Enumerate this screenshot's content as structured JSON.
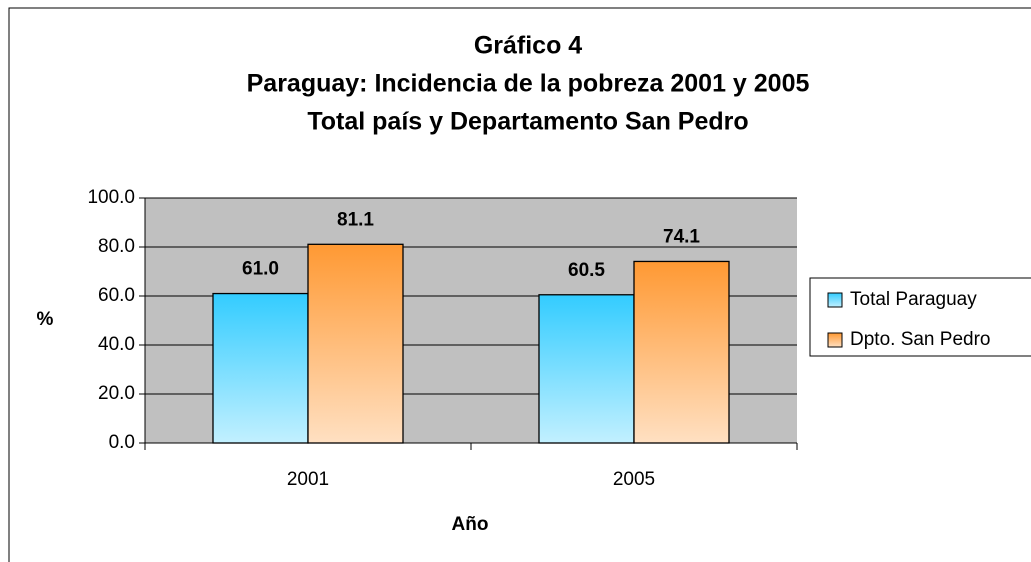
{
  "chart_data": {
    "type": "bar",
    "title": [
      "Gráfico 4",
      "Paraguay: Incidencia de la pobreza 2001 y 2005",
      "Total país y Departamento San Pedro"
    ],
    "x_label": "Año",
    "y_label": "%",
    "categories": [
      "2001",
      "2005"
    ],
    "series": [
      {
        "name": "Total Paraguay",
        "color": "#33ccff",
        "values": [
          61.0,
          60.5
        ],
        "value_labels": [
          "61.0",
          "60.5"
        ]
      },
      {
        "name": "Dpto. San Pedro",
        "color": "#ff9933",
        "values": [
          81.1,
          74.1
        ],
        "value_labels": [
          "81.1",
          "74.1"
        ]
      }
    ],
    "ylim": [
      0,
      100
    ],
    "yticks": [
      {
        "value": 0,
        "label": "0.0"
      },
      {
        "value": 20,
        "label": "20.0"
      },
      {
        "value": 40,
        "label": "40.0"
      },
      {
        "value": 60,
        "label": "60.0"
      },
      {
        "value": 80,
        "label": "80.0"
      },
      {
        "value": 100,
        "label": "100.0"
      }
    ],
    "grid": true,
    "legend": "right"
  }
}
